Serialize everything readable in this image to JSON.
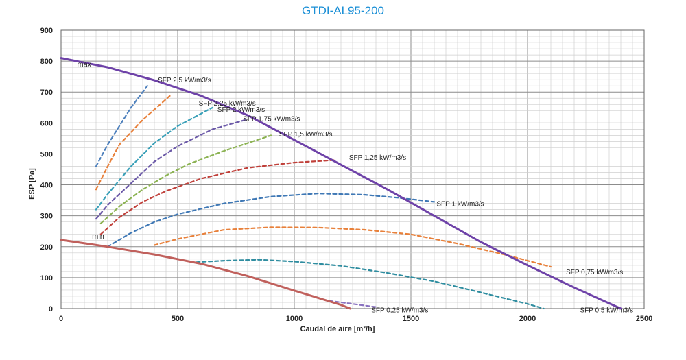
{
  "chart_data": {
    "type": "line",
    "title": "GTDI-AL95-200",
    "xlabel": "Caudal de aire [m³/h]",
    "ylabel": "ESP  [Pa]",
    "xlim": [
      0,
      2500
    ],
    "ylim": [
      0,
      900
    ],
    "x_ticks": [
      "0",
      "500",
      "1000",
      "1500",
      "2000",
      "2500"
    ],
    "y_ticks": [
      "0",
      "100",
      "200",
      "300",
      "400",
      "500",
      "600",
      "700",
      "800",
      "900"
    ],
    "grid": true,
    "colors": {
      "max": "#6e42a8",
      "min": "#c0605c",
      "title": "#1a8fd6"
    },
    "series": [
      {
        "name": "max",
        "style": "solid",
        "color": "#6e42a8",
        "points": [
          [
            0,
            810
          ],
          [
            200,
            780
          ],
          [
            400,
            738
          ],
          [
            600,
            688
          ],
          [
            800,
            625
          ],
          [
            1000,
            545
          ],
          [
            1200,
            465
          ],
          [
            1400,
            385
          ],
          [
            1600,
            300
          ],
          [
            1800,
            215
          ],
          [
            2000,
            140
          ],
          [
            2200,
            68
          ],
          [
            2400,
            0
          ]
        ]
      },
      {
        "name": "min",
        "style": "solid",
        "color": "#c0605c",
        "points": [
          [
            0,
            222
          ],
          [
            200,
            200
          ],
          [
            400,
            175
          ],
          [
            600,
            145
          ],
          [
            800,
            105
          ],
          [
            1000,
            58
          ],
          [
            1100,
            35
          ],
          [
            1200,
            12
          ],
          [
            1240,
            0
          ]
        ]
      },
      {
        "name": "SFP 2,5 kW/m3/s",
        "style": "dashed",
        "color": "#4f81bd",
        "points": [
          [
            150,
            460
          ],
          [
            200,
            530
          ],
          [
            250,
            590
          ],
          [
            300,
            650
          ],
          [
            370,
            720
          ]
        ]
      },
      {
        "name": "SFP 2,25 kW/m3/s",
        "style": "dashed",
        "color": "#e8803a",
        "points": [
          [
            150,
            385
          ],
          [
            200,
            460
          ],
          [
            250,
            530
          ],
          [
            350,
            610
          ],
          [
            470,
            690
          ]
        ]
      },
      {
        "name": "SFP 2 kW/m3/s",
        "style": "dashed",
        "color": "#3aa0b8",
        "points": [
          [
            150,
            320
          ],
          [
            200,
            370
          ],
          [
            300,
            460
          ],
          [
            400,
            535
          ],
          [
            500,
            590
          ],
          [
            650,
            650
          ]
        ]
      },
      {
        "name": "SFP 1,75 kW/m3/s",
        "style": "dashed",
        "color": "#6c5aa8",
        "points": [
          [
            150,
            290
          ],
          [
            200,
            335
          ],
          [
            300,
            405
          ],
          [
            400,
            475
          ],
          [
            500,
            525
          ],
          [
            650,
            580
          ],
          [
            800,
            612
          ]
        ]
      },
      {
        "name": "SFP 1,5 kW/m3/s",
        "style": "dashed",
        "color": "#8bb252",
        "points": [
          [
            170,
            275
          ],
          [
            250,
            330
          ],
          [
            350,
            385
          ],
          [
            450,
            430
          ],
          [
            550,
            468
          ],
          [
            700,
            510
          ],
          [
            900,
            560
          ]
        ]
      },
      {
        "name": "SFP 1,25 kW/m3/s",
        "style": "dashed",
        "color": "#c0403a",
        "points": [
          [
            170,
            240
          ],
          [
            250,
            295
          ],
          [
            350,
            345
          ],
          [
            450,
            380
          ],
          [
            600,
            420
          ],
          [
            800,
            455
          ],
          [
            1000,
            472
          ],
          [
            1170,
            480
          ]
        ]
      },
      {
        "name": "SFP 1 kW/m3/s",
        "style": "dashed",
        "color": "#3f78b5",
        "points": [
          [
            200,
            200
          ],
          [
            300,
            245
          ],
          [
            400,
            280
          ],
          [
            500,
            305
          ],
          [
            700,
            340
          ],
          [
            900,
            362
          ],
          [
            1100,
            372
          ],
          [
            1300,
            368
          ],
          [
            1450,
            358
          ],
          [
            1600,
            345
          ]
        ]
      },
      {
        "name": "SFP 0,75 kW/m3/s",
        "style": "dashed",
        "color": "#e8803a",
        "points": [
          [
            400,
            205
          ],
          [
            500,
            225
          ],
          [
            700,
            255
          ],
          [
            900,
            263
          ],
          [
            1100,
            262
          ],
          [
            1300,
            255
          ],
          [
            1500,
            240
          ],
          [
            1700,
            210
          ],
          [
            1900,
            175
          ],
          [
            2100,
            135
          ]
        ]
      },
      {
        "name": "SFP 0,5 kW/m3/s",
        "style": "dashed",
        "color": "#2f8da0",
        "points": [
          [
            580,
            150
          ],
          [
            700,
            155
          ],
          [
            850,
            158
          ],
          [
            1000,
            152
          ],
          [
            1200,
            138
          ],
          [
            1400,
            115
          ],
          [
            1600,
            88
          ],
          [
            1800,
            52
          ],
          [
            2000,
            15
          ],
          [
            2070,
            0
          ]
        ]
      },
      {
        "name": "SFP 0,25 kW/m3/s",
        "style": "dashed",
        "color": "#8a72c0",
        "points": [
          [
            1150,
            25
          ],
          [
            1250,
            15
          ],
          [
            1350,
            5
          ]
        ]
      }
    ],
    "labels": [
      {
        "text": "max",
        "x": 130,
        "y": 790,
        "anchor": "end"
      },
      {
        "text": "min",
        "x": 185,
        "y": 235,
        "anchor": "end"
      },
      {
        "text": "SFP 2,5 kW/m3/s",
        "x": 415,
        "y": 740,
        "anchor": "start"
      },
      {
        "text": "SFP 2,25 kW/m3/s",
        "x": 590,
        "y": 665,
        "anchor": "start"
      },
      {
        "text": "SFP 2 kW/m3/s",
        "x": 670,
        "y": 645,
        "anchor": "start"
      },
      {
        "text": "SFP 1,75 kW/m3/s",
        "x": 780,
        "y": 615,
        "anchor": "start"
      },
      {
        "text": "SFP 1,5 kW/m3/s",
        "x": 935,
        "y": 565,
        "anchor": "start"
      },
      {
        "text": "SFP 1,25 kW/m3/s",
        "x": 1235,
        "y": 490,
        "anchor": "start"
      },
      {
        "text": "SFP 1 kW/m3/s",
        "x": 1610,
        "y": 340,
        "anchor": "start"
      },
      {
        "text": "SFP 0,75 kW/m3/s",
        "x": 2165,
        "y": 120,
        "anchor": "start"
      },
      {
        "text": "SFP 0,5 kW/m3/s",
        "x": 2225,
        "y": -3,
        "anchor": "start"
      },
      {
        "text": "SFP 0,25 kW/m3/s",
        "x": 1330,
        "y": -3,
        "anchor": "start"
      }
    ]
  }
}
